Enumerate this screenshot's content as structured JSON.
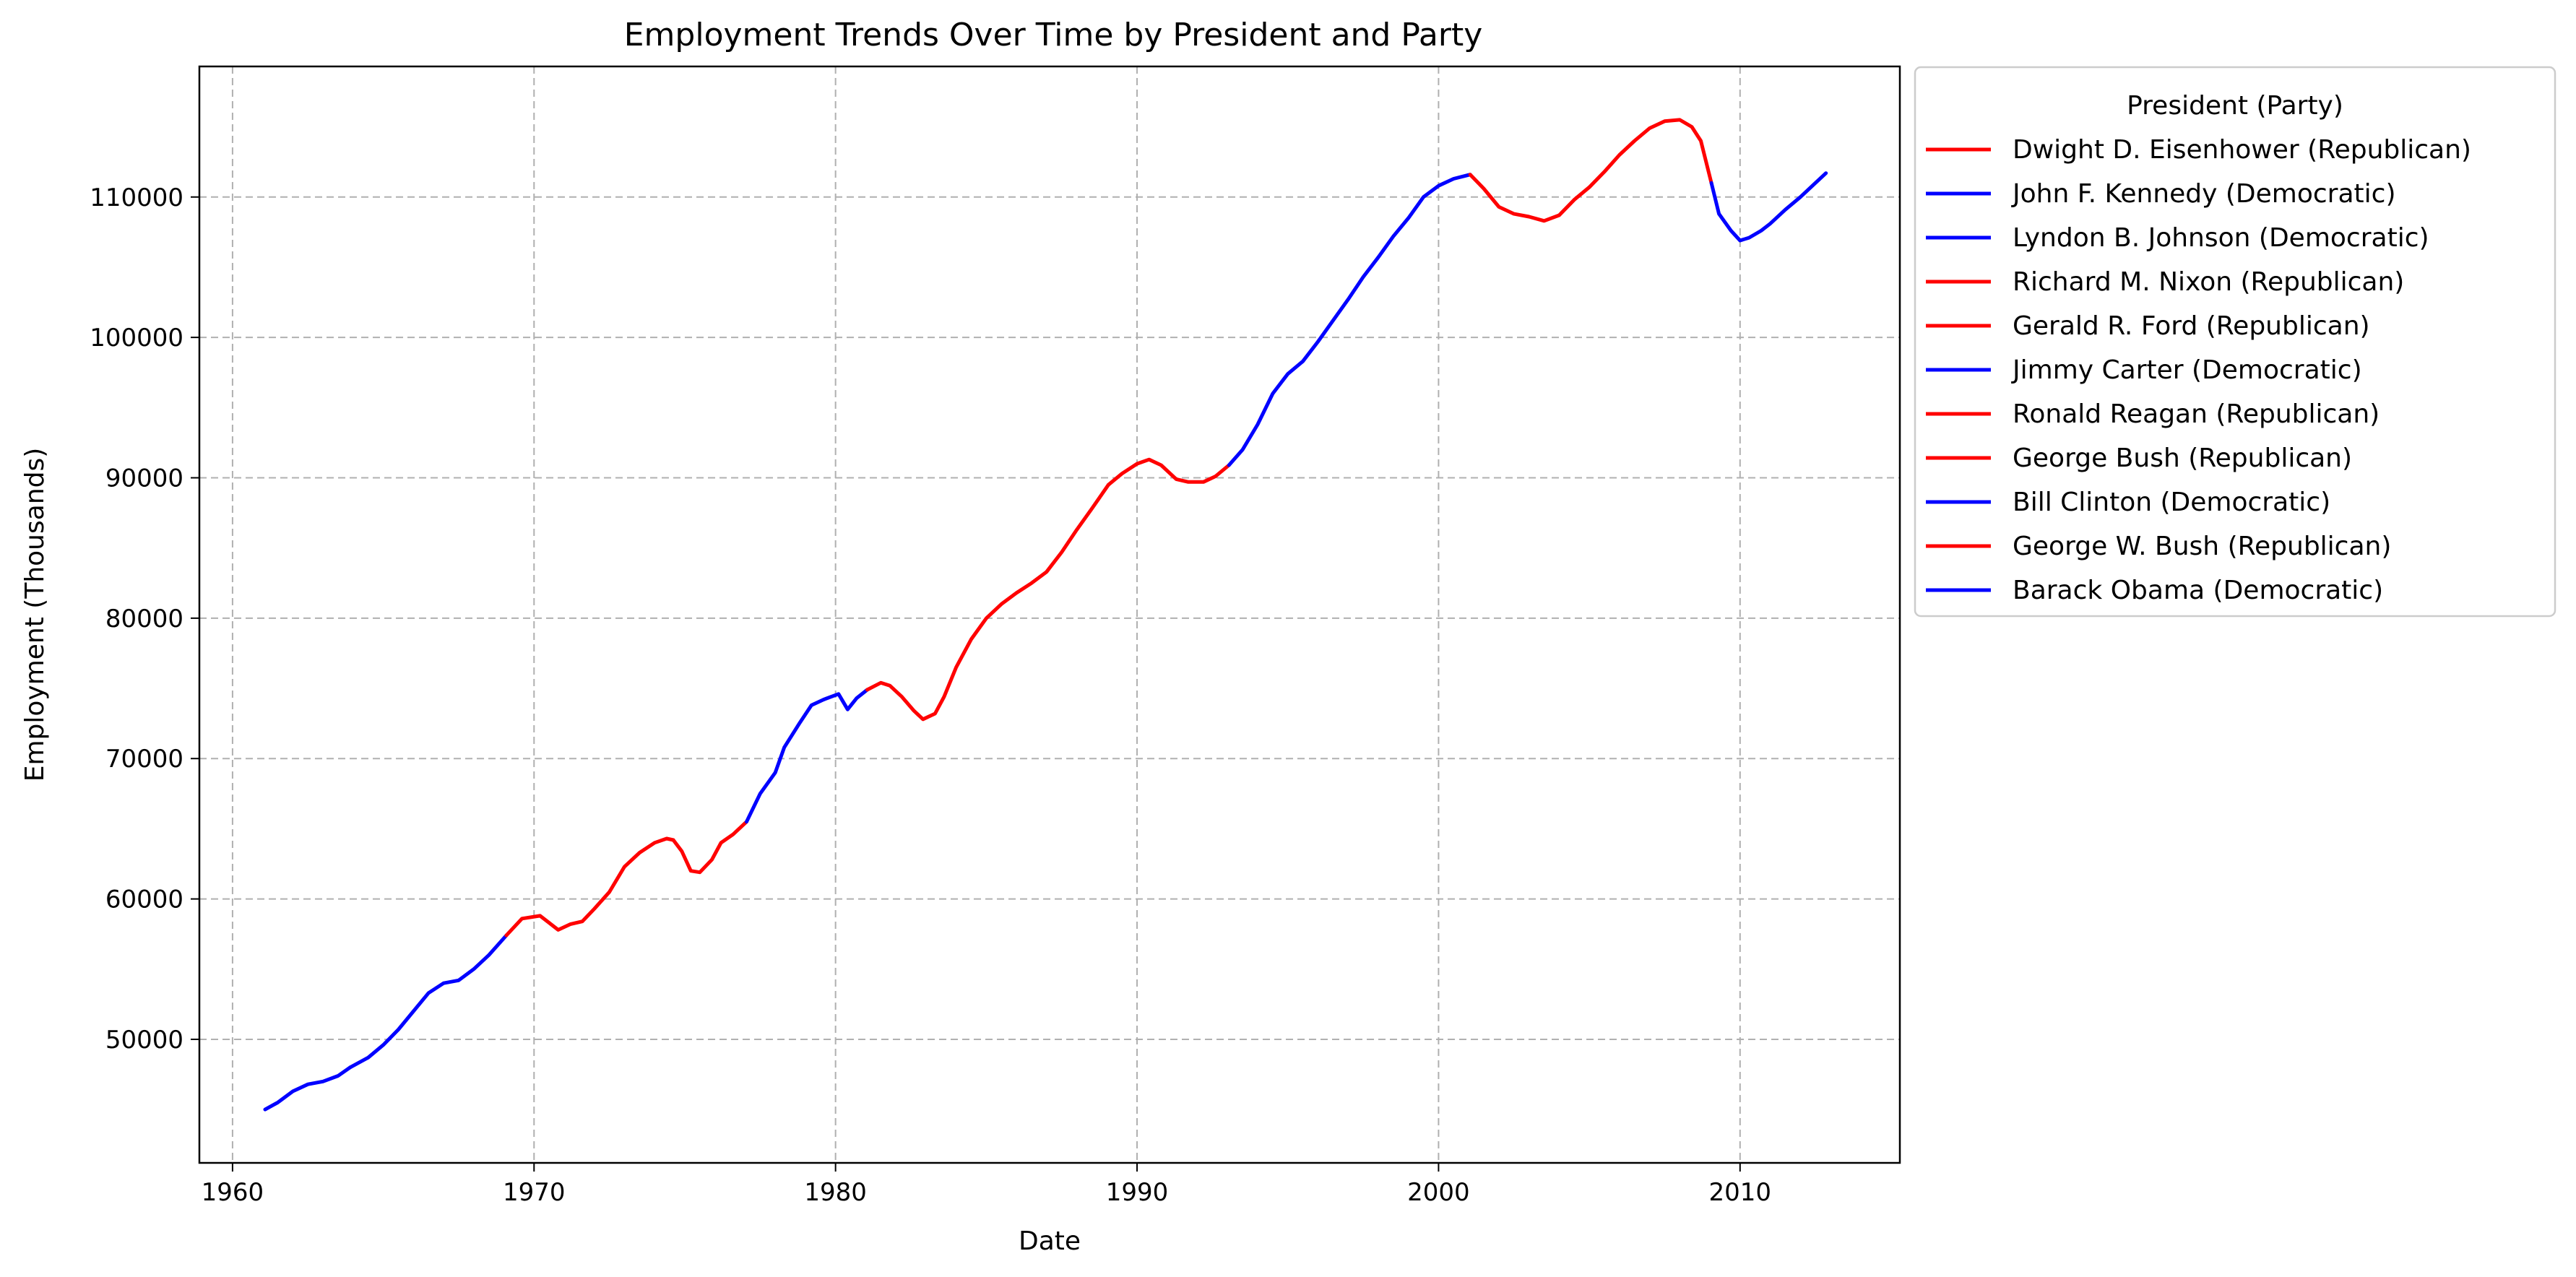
{
  "chart_data": {
    "type": "line",
    "title": "Employment Trends Over Time by President and Party",
    "xlabel": "Date",
    "ylabel": "Employment (Thousands)",
    "xlim": [
      1958.9,
      2015.3
    ],
    "ylim": [
      41200,
      119300
    ],
    "x_ticks": [
      1960,
      1970,
      1980,
      1990,
      2000,
      2010
    ],
    "y_ticks": [
      50000,
      60000,
      70000,
      80000,
      90000,
      100000,
      110000
    ],
    "grid": true,
    "grid_style": "dashed",
    "legend": {
      "title": "President (Party)",
      "placement": "outside-upper-right",
      "entries": [
        {
          "label": "Dwight D. Eisenhower (Republican)",
          "color": "#ff0000"
        },
        {
          "label": "John F. Kennedy (Democratic)",
          "color": "#0000ff"
        },
        {
          "label": "Lyndon B. Johnson (Democratic)",
          "color": "#0000ff"
        },
        {
          "label": "Richard M. Nixon (Republican)",
          "color": "#ff0000"
        },
        {
          "label": "Gerald R. Ford (Republican)",
          "color": "#ff0000"
        },
        {
          "label": "Jimmy Carter (Democratic)",
          "color": "#0000ff"
        },
        {
          "label": "Ronald Reagan (Republican)",
          "color": "#ff0000"
        },
        {
          "label": "George Bush (Republican)",
          "color": "#ff0000"
        },
        {
          "label": "Bill Clinton (Democratic)",
          "color": "#0000ff"
        },
        {
          "label": "George W. Bush (Republican)",
          "color": "#ff0000"
        },
        {
          "label": "Barack Obama (Democratic)",
          "color": "#0000ff"
        }
      ]
    },
    "series": [
      {
        "president": "John F. Kennedy",
        "party": "Democratic",
        "color": "#0000ff",
        "points": [
          [
            1961.08,
            45000
          ],
          [
            1961.5,
            45500
          ],
          [
            1962.0,
            46300
          ],
          [
            1962.5,
            46800
          ],
          [
            1963.0,
            47000
          ],
          [
            1963.5,
            47400
          ],
          [
            1963.9,
            48000
          ]
        ]
      },
      {
        "president": "Lyndon B. Johnson",
        "party": "Democratic",
        "color": "#0000ff",
        "points": [
          [
            1963.9,
            48000
          ],
          [
            1964.5,
            48700
          ],
          [
            1965.0,
            49600
          ],
          [
            1965.5,
            50700
          ],
          [
            1966.0,
            52000
          ],
          [
            1966.5,
            53300
          ],
          [
            1967.0,
            54000
          ],
          [
            1967.5,
            54200
          ],
          [
            1968.0,
            55000
          ],
          [
            1968.5,
            56000
          ],
          [
            1969.08,
            57400
          ]
        ]
      },
      {
        "president": "Richard M. Nixon",
        "party": "Republican",
        "color": "#ff0000",
        "points": [
          [
            1969.08,
            57400
          ],
          [
            1969.6,
            58600
          ],
          [
            1970.2,
            58800
          ],
          [
            1970.5,
            58300
          ],
          [
            1970.8,
            57800
          ],
          [
            1971.2,
            58200
          ],
          [
            1971.6,
            58400
          ],
          [
            1972.0,
            59300
          ],
          [
            1972.5,
            60500
          ],
          [
            1973.0,
            62300
          ],
          [
            1973.5,
            63300
          ],
          [
            1974.0,
            64000
          ],
          [
            1974.4,
            64300
          ],
          [
            1974.62,
            64200
          ]
        ]
      },
      {
        "president": "Gerald R. Ford",
        "party": "Republican",
        "color": "#ff0000",
        "points": [
          [
            1974.62,
            64200
          ],
          [
            1974.9,
            63400
          ],
          [
            1975.2,
            62000
          ],
          [
            1975.5,
            61900
          ],
          [
            1975.9,
            62800
          ],
          [
            1976.2,
            64000
          ],
          [
            1976.6,
            64600
          ],
          [
            1977.05,
            65500
          ]
        ]
      },
      {
        "president": "Jimmy Carter",
        "party": "Democratic",
        "color": "#0000ff",
        "points": [
          [
            1977.05,
            65500
          ],
          [
            1977.5,
            67500
          ],
          [
            1978.0,
            69000
          ],
          [
            1978.3,
            70800
          ],
          [
            1978.8,
            72500
          ],
          [
            1979.2,
            73800
          ],
          [
            1979.6,
            74200
          ],
          [
            1980.1,
            74600
          ],
          [
            1980.4,
            73500
          ],
          [
            1980.7,
            74300
          ],
          [
            1981.05,
            74900
          ]
        ]
      },
      {
        "president": "Ronald Reagan",
        "party": "Republican",
        "color": "#ff0000",
        "points": [
          [
            1981.05,
            74900
          ],
          [
            1981.5,
            75400
          ],
          [
            1981.8,
            75200
          ],
          [
            1982.2,
            74400
          ],
          [
            1982.6,
            73400
          ],
          [
            1982.9,
            72800
          ],
          [
            1983.3,
            73200
          ],
          [
            1983.6,
            74400
          ],
          [
            1984.0,
            76500
          ],
          [
            1984.5,
            78500
          ],
          [
            1985.0,
            80000
          ],
          [
            1985.5,
            81000
          ],
          [
            1986.0,
            81800
          ],
          [
            1986.5,
            82500
          ],
          [
            1987.0,
            83300
          ],
          [
            1987.5,
            84700
          ],
          [
            1988.0,
            86300
          ],
          [
            1988.5,
            87800
          ],
          [
            1989.05,
            89500
          ]
        ]
      },
      {
        "president": "George Bush",
        "party": "Republican",
        "color": "#ff0000",
        "points": [
          [
            1989.05,
            89500
          ],
          [
            1989.5,
            90300
          ],
          [
            1990.0,
            91000
          ],
          [
            1990.4,
            91300
          ],
          [
            1990.8,
            90900
          ],
          [
            1991.3,
            89900
          ],
          [
            1991.7,
            89700
          ],
          [
            1992.2,
            89700
          ],
          [
            1992.6,
            90100
          ],
          [
            1993.05,
            90900
          ]
        ]
      },
      {
        "president": "Bill Clinton",
        "party": "Democratic",
        "color": "#0000ff",
        "points": [
          [
            1993.05,
            90900
          ],
          [
            1993.5,
            92000
          ],
          [
            1994.0,
            93800
          ],
          [
            1994.5,
            96000
          ],
          [
            1995.0,
            97400
          ],
          [
            1995.5,
            98300
          ],
          [
            1996.0,
            99700
          ],
          [
            1996.5,
            101200
          ],
          [
            1997.0,
            102700
          ],
          [
            1997.5,
            104300
          ],
          [
            1998.0,
            105700
          ],
          [
            1998.5,
            107200
          ],
          [
            1999.0,
            108500
          ],
          [
            1999.5,
            110000
          ],
          [
            2000.0,
            110800
          ],
          [
            2000.5,
            111300
          ],
          [
            2001.05,
            111600
          ]
        ]
      },
      {
        "president": "George W. Bush",
        "party": "Republican",
        "color": "#ff0000",
        "points": [
          [
            2001.05,
            111600
          ],
          [
            2001.5,
            110600
          ],
          [
            2002.0,
            109300
          ],
          [
            2002.5,
            108800
          ],
          [
            2003.0,
            108600
          ],
          [
            2003.5,
            108300
          ],
          [
            2004.0,
            108700
          ],
          [
            2004.5,
            109800
          ],
          [
            2005.0,
            110700
          ],
          [
            2005.5,
            111800
          ],
          [
            2006.0,
            113000
          ],
          [
            2006.5,
            114000
          ],
          [
            2007.0,
            114900
          ],
          [
            2007.5,
            115400
          ],
          [
            2008.0,
            115500
          ],
          [
            2008.4,
            115000
          ],
          [
            2008.7,
            114000
          ],
          [
            2009.05,
            111000
          ]
        ]
      },
      {
        "president": "Barack Obama",
        "party": "Democratic",
        "color": "#0000ff",
        "points": [
          [
            2009.05,
            111000
          ],
          [
            2009.3,
            108800
          ],
          [
            2009.7,
            107600
          ],
          [
            2010.0,
            106900
          ],
          [
            2010.3,
            107100
          ],
          [
            2010.7,
            107600
          ],
          [
            2011.0,
            108100
          ],
          [
            2011.5,
            109100
          ],
          [
            2012.0,
            110000
          ],
          [
            2012.5,
            111000
          ],
          [
            2012.85,
            111700
          ]
        ]
      }
    ]
  }
}
